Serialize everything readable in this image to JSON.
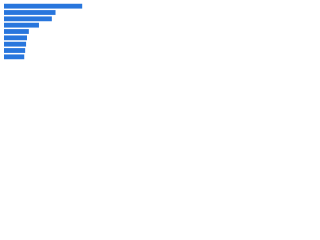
{
  "chart_data": {
    "type": "bar",
    "orientation": "horizontal",
    "categories": [
      null,
      null,
      null,
      null,
      null,
      null,
      null,
      null,
      null
    ],
    "values": [
      85,
      56,
      52,
      38,
      27,
      25,
      24,
      23,
      22
    ],
    "color": "#2876dd",
    "xlim": [
      0,
      100
    ]
  }
}
